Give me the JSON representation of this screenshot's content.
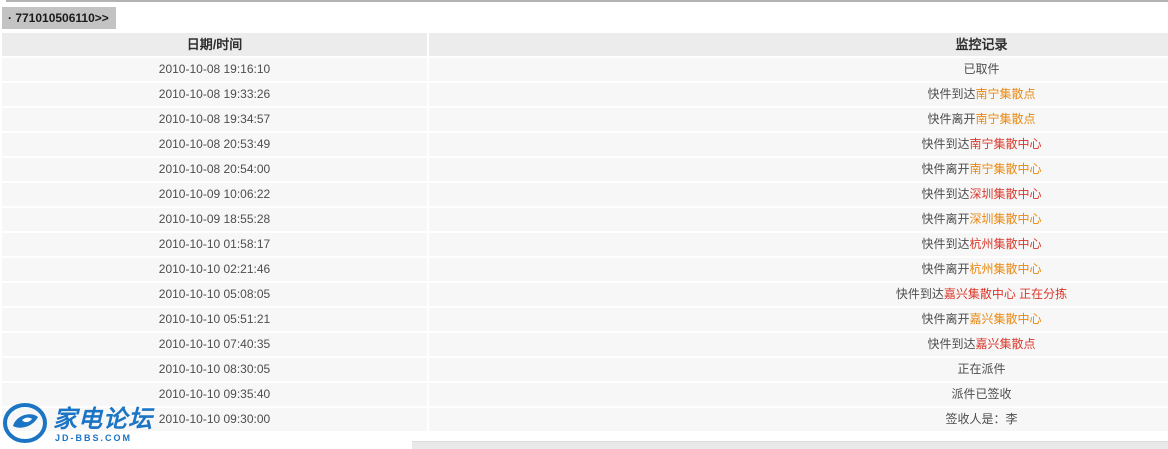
{
  "page": {
    "tracking_number_label": "· 771010506110>>"
  },
  "table": {
    "headers": {
      "datetime": "日期/时间",
      "record": "监控记录"
    },
    "rows": [
      {
        "time": "2010-10-08 19:16:10",
        "parts": [
          {
            "text": "已取件",
            "color": "default"
          }
        ]
      },
      {
        "time": "2010-10-08 19:33:26",
        "parts": [
          {
            "text": "快件到达",
            "color": "default"
          },
          {
            "text": "南宁集散点",
            "color": "orange"
          }
        ]
      },
      {
        "time": "2010-10-08 19:34:57",
        "parts": [
          {
            "text": "快件离开",
            "color": "default"
          },
          {
            "text": "南宁集散点",
            "color": "orange"
          }
        ]
      },
      {
        "time": "2010-10-08 20:53:49",
        "parts": [
          {
            "text": "快件到达",
            "color": "default"
          },
          {
            "text": "南宁集散中心",
            "color": "red"
          }
        ]
      },
      {
        "time": "2010-10-08 20:54:00",
        "parts": [
          {
            "text": "快件离开",
            "color": "default"
          },
          {
            "text": "南宁集散中心",
            "color": "orange"
          }
        ]
      },
      {
        "time": "2010-10-09 10:06:22",
        "parts": [
          {
            "text": "快件到达",
            "color": "default"
          },
          {
            "text": "深圳集散中心",
            "color": "red"
          }
        ]
      },
      {
        "time": "2010-10-09 18:55:28",
        "parts": [
          {
            "text": "快件离开",
            "color": "default"
          },
          {
            "text": "深圳集散中心",
            "color": "orange"
          }
        ]
      },
      {
        "time": "2010-10-10 01:58:17",
        "parts": [
          {
            "text": "快件到达",
            "color": "default"
          },
          {
            "text": "杭州集散中心",
            "color": "red"
          }
        ]
      },
      {
        "time": "2010-10-10 02:21:46",
        "parts": [
          {
            "text": "快件离开",
            "color": "default"
          },
          {
            "text": "杭州集散中心",
            "color": "orange"
          }
        ]
      },
      {
        "time": "2010-10-10 05:08:05",
        "parts": [
          {
            "text": "快件到达",
            "color": "default"
          },
          {
            "text": "嘉兴集散中心",
            "color": "red"
          },
          {
            "text": " 正在分拣",
            "color": "red"
          }
        ]
      },
      {
        "time": "2010-10-10 05:51:21",
        "parts": [
          {
            "text": "快件离开",
            "color": "default"
          },
          {
            "text": "嘉兴集散中心",
            "color": "orange"
          }
        ]
      },
      {
        "time": "2010-10-10 07:40:35",
        "parts": [
          {
            "text": "快件到达",
            "color": "default"
          },
          {
            "text": "嘉兴集散点",
            "color": "red"
          }
        ]
      },
      {
        "time": "2010-10-10 08:30:05",
        "parts": [
          {
            "text": "正在派件",
            "color": "default"
          }
        ]
      },
      {
        "time": "2010-10-10 09:35:40",
        "parts": [
          {
            "text": "派件已签收",
            "color": "default"
          }
        ]
      },
      {
        "time": "2010-10-10 09:30:00",
        "parts": [
          {
            "text": "签收人是：李",
            "color": "default"
          }
        ]
      }
    ]
  },
  "logo": {
    "title": "家电论坛",
    "subtitle": "JD-BBS.COM"
  },
  "colors": {
    "orange": "#e8880f",
    "red": "#d9382b",
    "blue": "#1b74c4"
  }
}
